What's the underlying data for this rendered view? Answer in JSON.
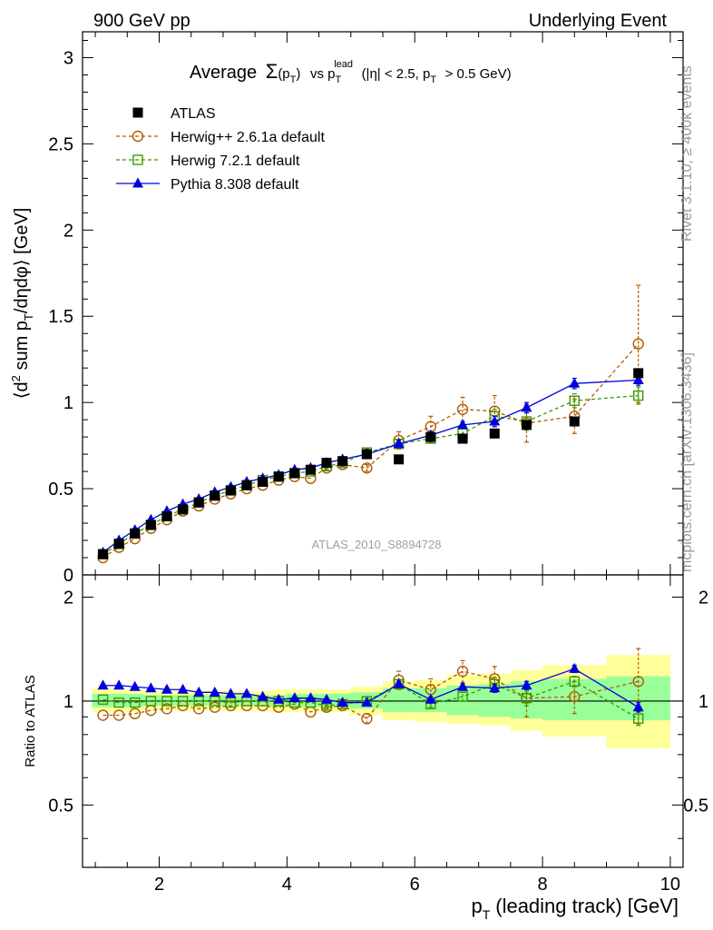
{
  "header": {
    "left": "900 GeV pp",
    "right": "Underlying Event"
  },
  "side_labels": {
    "rivet": "Rivet 3.1.10, ≥ 400k events",
    "mcplots": "mcplots.cern.ch [arXiv:1306.3436]"
  },
  "analysis_id": "ATLAS_2010_S8894728",
  "colors": {
    "atlas": "#000000",
    "herwigpp": "#b25a00",
    "herwig7": "#3a9a00",
    "pythia": "#0000e0",
    "band_outer": "#ffff99",
    "band_inner": "#99ff99"
  },
  "chart_data": [
    {
      "type": "scatter",
      "panel": "main",
      "title_parts": {
        "t1": "Average",
        "t2": "Σ",
        "t3": "(p",
        "t4": "T",
        "t5": ")",
        "t6": "vs p",
        "t7": "T",
        "t8": "lead",
        "t9": "(|η| < 2.5, p",
        "t10": "T",
        "t11": "> 0.5 GeV)"
      },
      "ylabel_parts": {
        "p1": "⟨d",
        "p2": "2",
        "p3": " sum p",
        "p4": "T",
        "p5": "/dηdφ⟩ [GeV]"
      },
      "xlim": [
        0.8,
        10.2
      ],
      "ylim": [
        0,
        3.15
      ],
      "y_ticks": [
        {
          "value": 0,
          "label": "0"
        },
        {
          "value": 0.5,
          "label": "0.5"
        },
        {
          "value": 1,
          "label": "1"
        },
        {
          "value": 1.5,
          "label": "1.5"
        },
        {
          "value": 2,
          "label": "2"
        },
        {
          "value": 2.5,
          "label": "2.5"
        },
        {
          "value": 3,
          "label": "3"
        }
      ],
      "x": [
        1.12,
        1.37,
        1.62,
        1.87,
        2.12,
        2.37,
        2.62,
        2.87,
        3.12,
        3.37,
        3.62,
        3.87,
        4.12,
        4.37,
        4.62,
        4.87,
        5.25,
        5.75,
        6.25,
        6.75,
        7.25,
        7.75,
        8.5,
        9.5
      ],
      "series": [
        {
          "name": "ATLAS",
          "style": "marker",
          "values": [
            0.12,
            0.18,
            0.24,
            0.29,
            0.34,
            0.38,
            0.42,
            0.46,
            0.49,
            0.52,
            0.54,
            0.57,
            0.59,
            0.61,
            0.65,
            0.66,
            0.7,
            0.67,
            0.8,
            0.79,
            0.82,
            0.87,
            0.89,
            1.17
          ]
        },
        {
          "name": "Herwig++ 2.6.1a default",
          "style": "open-circle",
          "values": [
            0.1,
            0.16,
            0.21,
            0.27,
            0.32,
            0.37,
            0.4,
            0.44,
            0.47,
            0.5,
            0.52,
            0.55,
            0.57,
            0.56,
            0.62,
            0.64,
            0.62,
            0.78,
            0.86,
            0.96,
            0.95,
            0.88,
            0.92,
            1.34
          ],
          "errors": [
            0,
            0,
            0,
            0,
            0,
            0,
            0,
            0,
            0,
            0,
            0,
            0,
            0,
            0,
            0.01,
            0.01,
            0.02,
            0.05,
            0.06,
            0.07,
            0.09,
            0.11,
            0.1,
            0.34
          ]
        },
        {
          "name": "Herwig 7.2.1 default",
          "style": "open-square",
          "values": [
            0.12,
            0.18,
            0.24,
            0.29,
            0.34,
            0.38,
            0.42,
            0.46,
            0.49,
            0.52,
            0.55,
            0.57,
            0.59,
            0.6,
            0.63,
            0.65,
            0.71,
            0.76,
            0.79,
            0.82,
            0.92,
            0.89,
            1.01,
            1.04
          ],
          "errors": [
            0,
            0,
            0,
            0,
            0,
            0,
            0,
            0,
            0,
            0,
            0,
            0,
            0,
            0,
            0.01,
            0.01,
            0.02,
            0.02,
            0.02,
            0.03,
            0.04,
            0.05,
            0.04,
            0.05
          ]
        },
        {
          "name": "Pythia 8.308 default",
          "style": "filled-triangle",
          "values": [
            0.13,
            0.2,
            0.26,
            0.32,
            0.37,
            0.41,
            0.44,
            0.48,
            0.51,
            0.54,
            0.56,
            0.58,
            0.61,
            0.62,
            0.65,
            0.67,
            0.7,
            0.76,
            0.81,
            0.87,
            0.89,
            0.97,
            1.11,
            1.13
          ],
          "errors": [
            0,
            0,
            0,
            0,
            0,
            0,
            0,
            0,
            0,
            0,
            0,
            0,
            0,
            0,
            0.01,
            0.01,
            0.01,
            0.02,
            0.02,
            0.02,
            0.03,
            0.03,
            0.03,
            0.03
          ]
        }
      ]
    },
    {
      "type": "scatter",
      "panel": "ratio",
      "ylabel": "Ratio to ATLAS",
      "xlabel_parts": {
        "a": "p",
        "b": "T",
        "c": "(leading track) [GeV]"
      },
      "xlim": [
        0.8,
        10.2
      ],
      "ylim": [
        0.33,
        2.32
      ],
      "y_scale": "log",
      "x_ticks": [
        {
          "value": 2,
          "label": "2"
        },
        {
          "value": 4,
          "label": "4"
        },
        {
          "value": 6,
          "label": "6"
        },
        {
          "value": 8,
          "label": "8"
        },
        {
          "value": 10,
          "label": "10"
        }
      ],
      "y_ticks": [
        {
          "value": 0.5,
          "label": "0.5"
        },
        {
          "value": 1,
          "label": "1"
        },
        {
          "value": 2,
          "label": "2"
        }
      ],
      "bands": {
        "edges": [
          0.95,
          1.25,
          1.5,
          1.75,
          2.0,
          2.25,
          2.5,
          2.75,
          3.0,
          3.25,
          3.5,
          3.75,
          4.0,
          4.25,
          4.5,
          4.75,
          5.0,
          5.5,
          6.0,
          6.5,
          7.0,
          7.5,
          8.0,
          9.0,
          10.0
        ],
        "outer_up": [
          1.09,
          1.08,
          1.08,
          1.07,
          1.07,
          1.07,
          1.07,
          1.07,
          1.07,
          1.07,
          1.07,
          1.08,
          1.08,
          1.08,
          1.08,
          1.08,
          1.1,
          1.14,
          1.15,
          1.19,
          1.2,
          1.23,
          1.27,
          1.36
        ],
        "outer_lo": [
          0.93,
          0.93,
          0.93,
          0.94,
          0.94,
          0.94,
          0.94,
          0.94,
          0.94,
          0.94,
          0.94,
          0.93,
          0.93,
          0.93,
          0.93,
          0.93,
          0.91,
          0.88,
          0.87,
          0.86,
          0.85,
          0.82,
          0.79,
          0.73
        ],
        "inner_up": [
          1.05,
          1.05,
          1.05,
          1.04,
          1.04,
          1.04,
          1.04,
          1.04,
          1.04,
          1.04,
          1.04,
          1.04,
          1.05,
          1.05,
          1.05,
          1.05,
          1.06,
          1.09,
          1.09,
          1.11,
          1.12,
          1.14,
          1.16,
          1.18
        ],
        "inner_lo": [
          0.96,
          0.96,
          0.96,
          0.97,
          0.97,
          0.97,
          0.97,
          0.97,
          0.97,
          0.97,
          0.97,
          0.96,
          0.96,
          0.96,
          0.96,
          0.96,
          0.95,
          0.93,
          0.93,
          0.91,
          0.9,
          0.89,
          0.88,
          0.88
        ]
      },
      "x": [
        1.12,
        1.37,
        1.62,
        1.87,
        2.12,
        2.37,
        2.62,
        2.87,
        3.12,
        3.37,
        3.62,
        3.87,
        4.12,
        4.37,
        4.62,
        4.87,
        5.25,
        5.75,
        6.25,
        6.75,
        7.25,
        7.75,
        8.5,
        9.5
      ],
      "series": [
        {
          "name": "Herwig++ 2.6.1a default",
          "values": [
            0.91,
            0.91,
            0.92,
            0.94,
            0.95,
            0.97,
            0.95,
            0.96,
            0.97,
            0.97,
            0.97,
            0.96,
            0.98,
            0.93,
            0.96,
            0.97,
            0.89,
            1.15,
            1.08,
            1.22,
            1.16,
            1.02,
            1.03,
            1.14
          ],
          "errors": [
            0,
            0,
            0,
            0,
            0,
            0,
            0,
            0,
            0,
            0,
            0,
            0,
            0,
            0,
            0.01,
            0.01,
            0.03,
            0.07,
            0.08,
            0.09,
            0.1,
            0.12,
            0.11,
            0.28
          ]
        },
        {
          "name": "Herwig 7.2.1 default",
          "values": [
            1.01,
            0.99,
            0.99,
            1.0,
            1.0,
            1.0,
            1.0,
            1.0,
            0.99,
            1.0,
            1.0,
            1.0,
            0.99,
            0.99,
            0.97,
            0.98,
            1.0,
            1.12,
            0.98,
            1.03,
            1.12,
            1.02,
            1.14,
            0.89
          ],
          "errors": [
            0,
            0,
            0,
            0,
            0,
            0,
            0,
            0,
            0,
            0,
            0,
            0,
            0,
            0,
            0.01,
            0.01,
            0.02,
            0.03,
            0.02,
            0.03,
            0.05,
            0.05,
            0.04,
            0.04
          ]
        },
        {
          "name": "Pythia 8.308 default",
          "values": [
            1.11,
            1.11,
            1.1,
            1.09,
            1.08,
            1.08,
            1.06,
            1.06,
            1.05,
            1.05,
            1.03,
            1.01,
            1.02,
            1.02,
            1.01,
            0.99,
            0.99,
            1.12,
            1.01,
            1.1,
            1.09,
            1.11,
            1.24,
            0.96
          ],
          "errors": [
            0,
            0,
            0,
            0,
            0,
            0,
            0,
            0,
            0,
            0,
            0,
            0,
            0,
            0,
            0.01,
            0.01,
            0.01,
            0.02,
            0.02,
            0.02,
            0.03,
            0.03,
            0.03,
            0.03
          ]
        }
      ]
    }
  ]
}
